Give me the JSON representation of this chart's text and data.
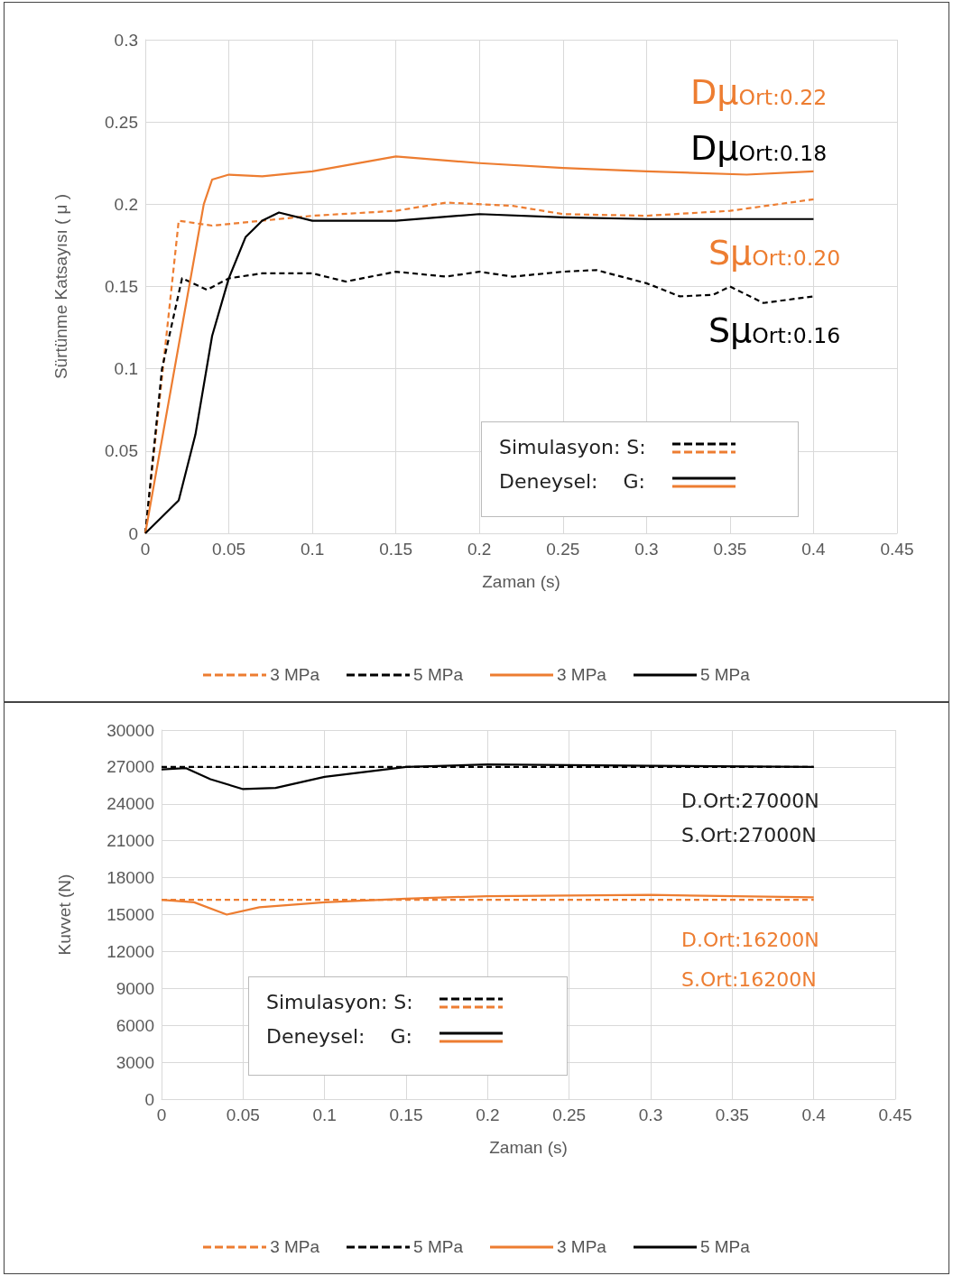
{
  "chart_data": [
    {
      "type": "line",
      "ylabel": "Sürtünme Katsayısı ( μ )",
      "xlabel": "Zaman (s)",
      "xlim": [
        0,
        0.45
      ],
      "xticks": [
        0,
        0.05,
        0.1,
        0.15,
        0.2,
        0.25,
        0.3,
        0.35,
        0.4,
        0.45
      ],
      "ylim": [
        0,
        0.3
      ],
      "yticks": [
        0,
        0.05,
        0.1,
        0.15,
        0.2,
        0.25,
        0.3
      ],
      "grid": true,
      "legend": "bottom",
      "annotations": [
        "Dμ$_{Ort:0.22}$",
        "Dμ$_{Ort:0.18}$",
        "Sμ$_{Ort:0.20}$",
        "Sμ$_{Ort:0.16}$",
        "Simulasyon: S:",
        "Deneysel:    G:"
      ],
      "series": [
        {
          "name": "3 MPa",
          "color": "#ed7d31",
          "line_style": "dashed",
          "x": [
            0,
            0.02,
            0.04,
            0.06,
            0.1,
            0.15,
            0.18,
            0.22,
            0.25,
            0.3,
            0.35,
            0.4
          ],
          "values": [
            0,
            0.19,
            0.187,
            0.189,
            0.193,
            0.196,
            0.201,
            0.199,
            0.194,
            0.193,
            0.196,
            0.203
          ]
        },
        {
          "name": "5 MPa",
          "color": "#000000",
          "line_style": "dashed",
          "x": [
            0,
            0.01,
            0.022,
            0.037,
            0.05,
            0.07,
            0.1,
            0.12,
            0.15,
            0.18,
            0.2,
            0.22,
            0.25,
            0.27,
            0.3,
            0.32,
            0.34,
            0.35,
            0.37,
            0.4
          ],
          "values": [
            0,
            0.1,
            0.155,
            0.148,
            0.155,
            0.158,
            0.158,
            0.153,
            0.159,
            0.156,
            0.159,
            0.156,
            0.159,
            0.16,
            0.152,
            0.144,
            0.145,
            0.15,
            0.14,
            0.144
          ]
        },
        {
          "name": "3 MPa",
          "color": "#ed7d31",
          "line_style": "solid",
          "x": [
            0,
            0.035,
            0.04,
            0.05,
            0.07,
            0.1,
            0.15,
            0.2,
            0.25,
            0.3,
            0.36,
            0.4
          ],
          "values": [
            0,
            0.2,
            0.215,
            0.218,
            0.217,
            0.22,
            0.229,
            0.225,
            0.222,
            0.22,
            0.218,
            0.22
          ]
        },
        {
          "name": "5 MPa",
          "color": "#000000",
          "line_style": "solid",
          "x": [
            0,
            0.02,
            0.03,
            0.04,
            0.05,
            0.06,
            0.07,
            0.08,
            0.1,
            0.15,
            0.2,
            0.25,
            0.3,
            0.4
          ],
          "values": [
            0,
            0.02,
            0.06,
            0.12,
            0.155,
            0.18,
            0.19,
            0.195,
            0.19,
            0.19,
            0.194,
            0.192,
            0.191,
            0.191
          ]
        }
      ]
    },
    {
      "type": "line",
      "ylabel": "Kuvvet (N)",
      "xlabel": "Zaman (s)",
      "xlim": [
        0,
        0.45
      ],
      "xticks": [
        0,
        0.05,
        0.1,
        0.15,
        0.2,
        0.25,
        0.3,
        0.35,
        0.4,
        0.45
      ],
      "ylim": [
        0,
        30000
      ],
      "yticks": [
        0,
        3000,
        6000,
        9000,
        12000,
        15000,
        18000,
        21000,
        24000,
        27000,
        30000
      ],
      "grid": true,
      "legend": "bottom",
      "annotations": [
        "D.Ort:27000N",
        "S.Ort:27000N",
        "D.Ort:16200N",
        "S.Ort:16200N",
        "Simulasyon: S:",
        "Deneysel:    G:"
      ],
      "series": [
        {
          "name": "3 MPa",
          "color": "#ed7d31",
          "line_style": "dashed",
          "x": [
            0,
            0.4
          ],
          "values": [
            16200,
            16200
          ]
        },
        {
          "name": "5 MPa",
          "color": "#000000",
          "line_style": "dashed",
          "x": [
            0,
            0.4
          ],
          "values": [
            27000,
            27000
          ]
        },
        {
          "name": "3 MPa",
          "color": "#ed7d31",
          "line_style": "solid",
          "x": [
            0,
            0.02,
            0.04,
            0.06,
            0.1,
            0.15,
            0.2,
            0.3,
            0.4
          ],
          "values": [
            16200,
            16000,
            15000,
            15600,
            16000,
            16300,
            16500,
            16600,
            16400
          ]
        },
        {
          "name": "5 MPa",
          "color": "#000000",
          "line_style": "solid",
          "x": [
            0,
            0.015,
            0.03,
            0.05,
            0.07,
            0.1,
            0.15,
            0.2,
            0.3,
            0.4
          ],
          "values": [
            26800,
            26900,
            26000,
            25200,
            25300,
            26200,
            27000,
            27200,
            27100,
            27000
          ]
        }
      ]
    }
  ]
}
